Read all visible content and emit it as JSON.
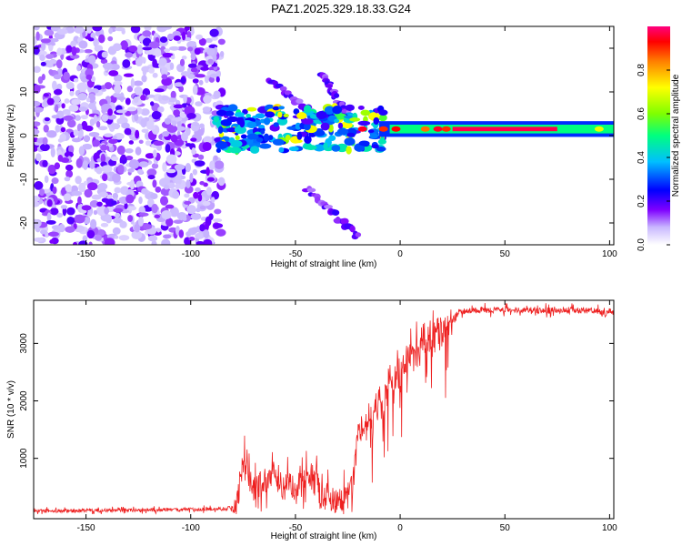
{
  "title": "PAZ1.2025.329.18.33.G24",
  "chart_data": [
    {
      "type": "heatmap",
      "name": "spectrogram",
      "xlabel": "Height of straight line (km)",
      "ylabel": "Frequency (Hz)",
      "xlim": [
        -175,
        102
      ],
      "ylim": [
        -25,
        25
      ],
      "xticks": [
        -150,
        -100,
        -50,
        0,
        50,
        100
      ],
      "yticks": [
        -20,
        -10,
        0,
        10,
        20
      ],
      "colorbar": {
        "label": "Normalized spectral amplitude",
        "range": [
          0,
          1
        ],
        "ticks": [
          0.0,
          0.2,
          0.4,
          0.6,
          0.8
        ],
        "tick_labels": [
          "0.0",
          "0.2",
          "0.4",
          "0.6",
          "0.8"
        ],
        "colors": [
          "#ffffff",
          "#b8b8ff",
          "#7f00ff",
          "#0000ff",
          "#00bfff",
          "#00ff7f",
          "#7fff00",
          "#ffff00",
          "#ff7f00",
          "#ff0000",
          "#ff007f"
        ]
      },
      "noise_region_x": [
        -175,
        -85
      ],
      "main_line": {
        "x_start": -88,
        "x_end": 102,
        "freq_hz": 1.5
      },
      "branches": [
        {
          "x": [
            -45,
            -20
          ],
          "f": [
            -12,
            -23
          ]
        },
        {
          "x": [
            -63,
            -35
          ],
          "f": [
            13,
            3
          ]
        },
        {
          "x": [
            -38,
            -25
          ],
          "f": [
            14,
            5
          ]
        }
      ]
    },
    {
      "type": "line",
      "name": "snr",
      "xlabel": "Height of straight line (km)",
      "ylabel": "SNR (10 * v/v)",
      "xlim": [
        -175,
        102
      ],
      "ylim": [
        -50,
        3750
      ],
      "xticks": [
        -150,
        -100,
        -50,
        0,
        50,
        100
      ],
      "yticks": [
        1000,
        2000,
        3000
      ],
      "color": "#ee2020",
      "series": [
        {
          "name": "SNR",
          "x": [
            -175,
            -150,
            -125,
            -100,
            -85,
            -79,
            -77,
            -75,
            -72,
            -70,
            -65,
            -60,
            -55,
            -50,
            -45,
            -40,
            -38,
            -35,
            -30,
            -25,
            -22,
            -20,
            -18,
            -15,
            -12,
            -10,
            -8,
            -5,
            -2,
            0,
            3,
            5,
            8,
            10,
            11,
            12,
            15,
            20,
            25,
            28,
            30,
            35,
            40,
            50,
            60,
            70,
            80,
            90,
            95,
            98,
            100,
            102
          ],
          "y": [
            80,
            90,
            100,
            110,
            120,
            150,
            550,
            950,
            600,
            450,
            600,
            650,
            500,
            550,
            600,
            700,
            300,
            350,
            250,
            350,
            700,
            1500,
            1600,
            1700,
            1900,
            1950,
            1900,
            2400,
            2450,
            2500,
            2700,
            2750,
            2800,
            3000,
            3100,
            3050,
            3150,
            3250,
            3400,
            3550,
            3560,
            3570,
            3580,
            3580,
            3585,
            3575,
            3580,
            3575,
            3550,
            3500,
            3560,
            3550
          ]
        }
      ]
    }
  ]
}
